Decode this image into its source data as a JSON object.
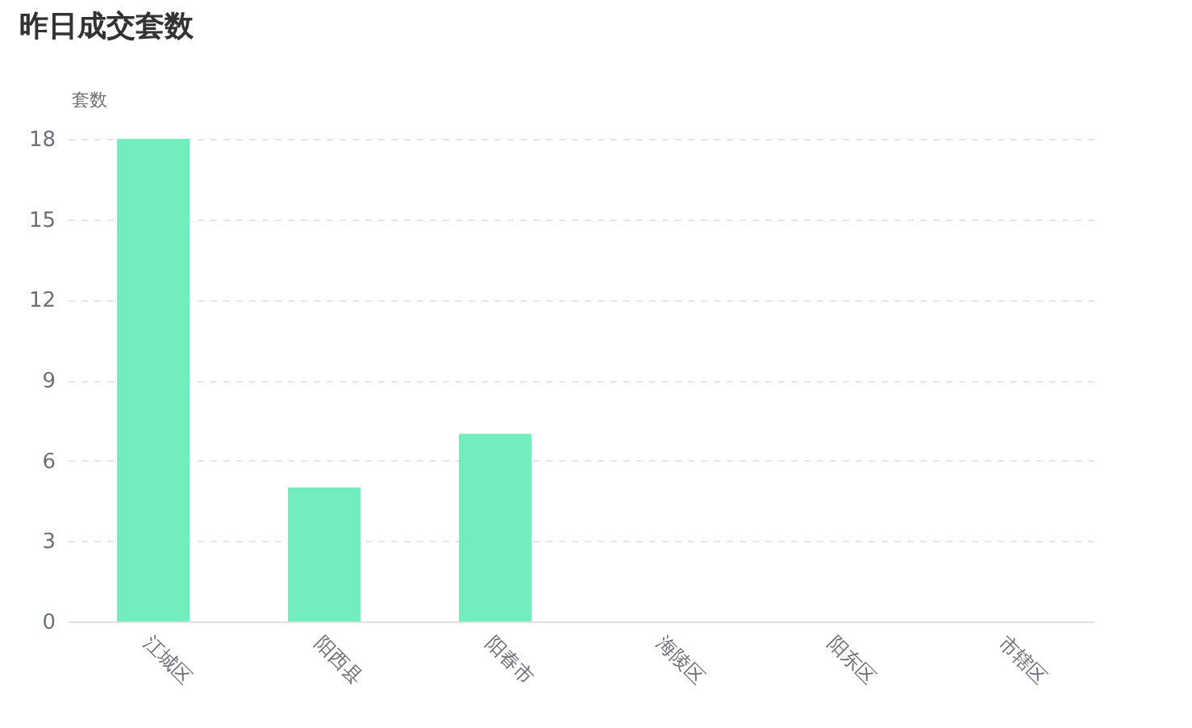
{
  "chart_data": {
    "type": "bar",
    "title": "昨日成交套数",
    "ylabel": "套数",
    "categories": [
      "江城区",
      "阳西县",
      "阳春市",
      "海陵区",
      "阳东区",
      "市辖区"
    ],
    "values": [
      18,
      5,
      7,
      0,
      0,
      0
    ],
    "color": "#72edbe",
    "ylim": [
      0,
      18
    ],
    "yticks": [
      0,
      3,
      6,
      9,
      12,
      15,
      18
    ],
    "grid": "y"
  }
}
